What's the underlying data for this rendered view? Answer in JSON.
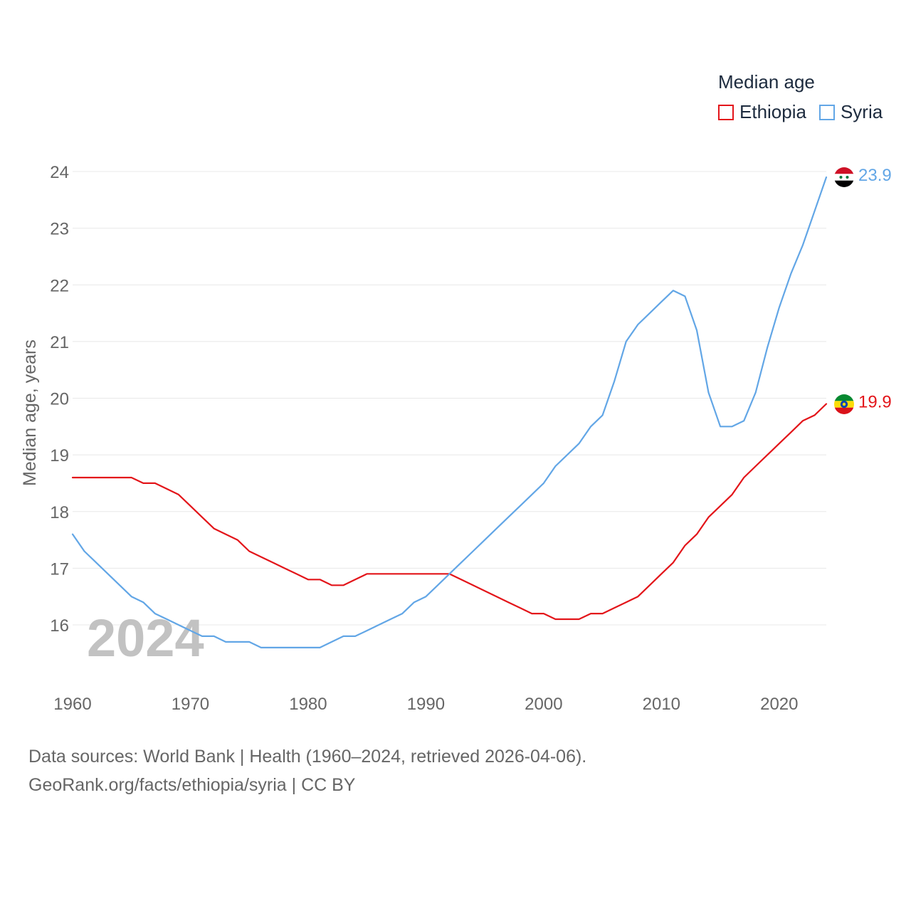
{
  "legend": {
    "title": "Median age",
    "items": [
      {
        "name": "Ethiopia",
        "color": "#e3151a"
      },
      {
        "name": "Syria",
        "color": "#62a6e6"
      }
    ]
  },
  "source": {
    "line1": "Data sources: World Bank | Health (1960–2024, retrieved 2026-04-06).",
    "line2": "GeoRank.org/facts/ethiopia/syria | CC BY"
  },
  "chart_data": {
    "type": "line",
    "title": "Median age",
    "xlabel": "",
    "ylabel": "Median age, years",
    "current_year": "2024",
    "xlim": [
      1960,
      2024
    ],
    "ylim": [
      15,
      24.5
    ],
    "x_ticks": [
      1960,
      1970,
      1980,
      1990,
      2000,
      2010,
      2020
    ],
    "y_ticks": [
      16,
      17,
      18,
      19,
      20,
      21,
      22,
      23,
      24
    ],
    "x": [
      1960,
      1961,
      1962,
      1963,
      1964,
      1965,
      1966,
      1967,
      1968,
      1969,
      1970,
      1971,
      1972,
      1973,
      1974,
      1975,
      1976,
      1977,
      1978,
      1979,
      1980,
      1981,
      1982,
      1983,
      1984,
      1985,
      1986,
      1987,
      1988,
      1989,
      1990,
      1991,
      1992,
      1993,
      1994,
      1995,
      1996,
      1997,
      1998,
      1999,
      2000,
      2001,
      2002,
      2003,
      2004,
      2005,
      2006,
      2007,
      2008,
      2009,
      2010,
      2011,
      2012,
      2013,
      2014,
      2015,
      2016,
      2017,
      2018,
      2019,
      2020,
      2021,
      2022,
      2023,
      2024
    ],
    "series": [
      {
        "name": "Ethiopia",
        "color": "#e3151a",
        "end_label": "19.9",
        "values": [
          18.6,
          18.6,
          18.6,
          18.6,
          18.6,
          18.6,
          18.5,
          18.5,
          18.4,
          18.3,
          18.1,
          17.9,
          17.7,
          17.6,
          17.5,
          17.3,
          17.2,
          17.1,
          17.0,
          16.9,
          16.8,
          16.8,
          16.7,
          16.7,
          16.8,
          16.9,
          16.9,
          16.9,
          16.9,
          16.9,
          16.9,
          16.9,
          16.9,
          16.8,
          16.7,
          16.6,
          16.5,
          16.4,
          16.3,
          16.2,
          16.2,
          16.1,
          16.1,
          16.1,
          16.2,
          16.2,
          16.3,
          16.4,
          16.5,
          16.7,
          16.9,
          17.1,
          17.4,
          17.6,
          17.9,
          18.1,
          18.3,
          18.6,
          18.8,
          19.0,
          19.2,
          19.4,
          19.6,
          19.7,
          19.9
        ]
      },
      {
        "name": "Syria",
        "color": "#62a6e6",
        "end_label": "23.9",
        "values": [
          17.6,
          17.3,
          17.1,
          16.9,
          16.7,
          16.5,
          16.4,
          16.2,
          16.1,
          16.0,
          15.9,
          15.8,
          15.8,
          15.7,
          15.7,
          15.7,
          15.6,
          15.6,
          15.6,
          15.6,
          15.6,
          15.6,
          15.7,
          15.8,
          15.8,
          15.9,
          16.0,
          16.1,
          16.2,
          16.4,
          16.5,
          16.7,
          16.9,
          17.1,
          17.3,
          17.5,
          17.7,
          17.9,
          18.1,
          18.3,
          18.5,
          18.8,
          19.0,
          19.2,
          19.5,
          19.7,
          20.3,
          21.0,
          21.3,
          21.5,
          21.7,
          21.9,
          21.8,
          21.2,
          20.1,
          19.5,
          19.5,
          19.6,
          20.1,
          20.9,
          21.6,
          22.2,
          22.7,
          23.3,
          23.9
        ]
      }
    ]
  }
}
